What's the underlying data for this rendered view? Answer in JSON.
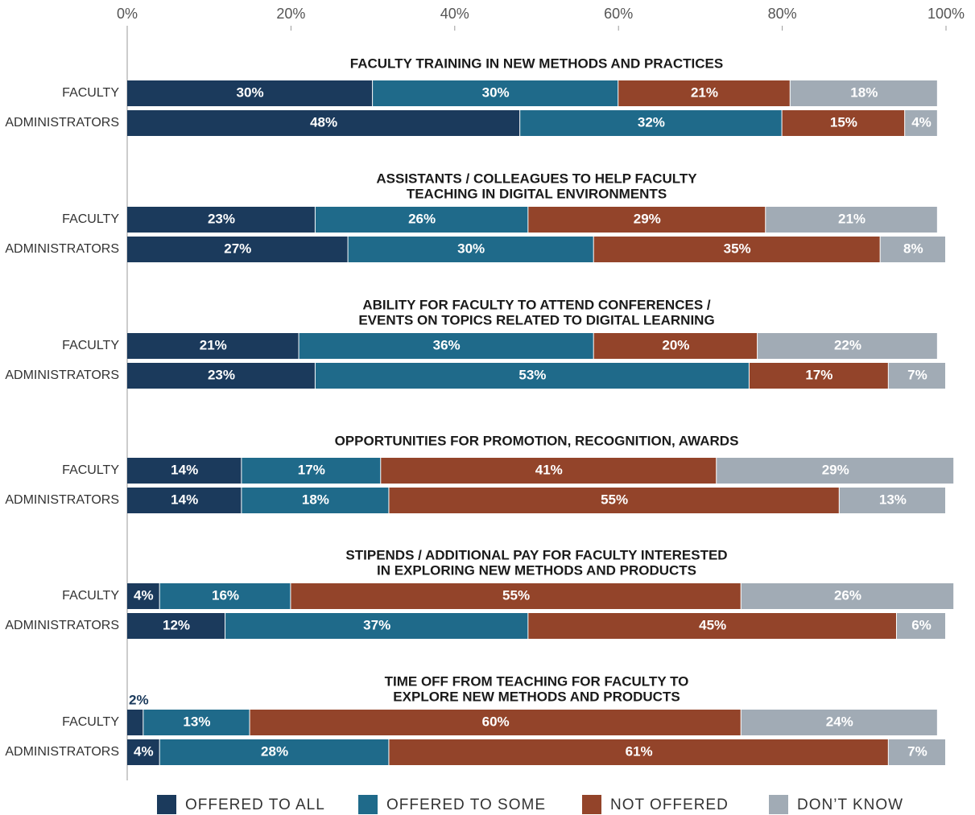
{
  "chart_data": {
    "type": "bar",
    "orientation": "horizontal",
    "stacked": true,
    "xlim": [
      0,
      100
    ],
    "xticks": [
      {
        "value": 0,
        "label": "0%"
      },
      {
        "value": 20,
        "label": "20%"
      },
      {
        "value": 40,
        "label": "40%"
      },
      {
        "value": 60,
        "label": "60%"
      },
      {
        "value": 80,
        "label": "80%"
      },
      {
        "value": 100,
        "label": "100%"
      }
    ],
    "group_titles": [
      [
        "FACULTY TRAINING IN NEW METHODS AND PRACTICES"
      ],
      [
        "ASSISTANTS / COLLEAGUES TO HELP FACULTY",
        "TEACHING IN DIGITAL ENVIRONMENTS"
      ],
      [
        "ABILITY FOR FACULTY TO ATTEND CONFERENCES /",
        "EVENTS ON TOPICS RELATED TO DIGITAL LEARNING"
      ],
      [
        "OPPORTUNITIES FOR PROMOTION, RECOGNITION, AWARDS"
      ],
      [
        "STIPENDS / ADDITIONAL PAY FOR FACULTY INTERESTED",
        "IN EXPLORING NEW METHODS AND PRODUCTS"
      ],
      [
        "TIME OFF FROM TEACHING FOR FACULTY TO",
        "EXPLORE NEW METHODS AND PRODUCTS"
      ]
    ],
    "categories": [
      "FACULTY",
      "ADMINISTRATORS",
      "FACULTY",
      "ADMINISTRATORS",
      "FACULTY",
      "ADMINISTRATORS",
      "FACULTY",
      "ADMINISTRATORS",
      "FACULTY",
      "ADMINISTRATORS",
      "FACULTY",
      "ADMINISTRATORS"
    ],
    "legend": "bottom",
    "series": [
      {
        "name": "OFFERED TO ALL",
        "color": "#1b3a5c",
        "values": [
          30,
          48,
          23,
          27,
          21,
          23,
          14,
          14,
          4,
          12,
          2,
          4
        ],
        "value_labels": [
          "30%",
          "48%",
          "23%",
          "27%",
          "21%",
          "23%",
          "14%",
          "14%",
          "4%",
          "12%",
          "2%",
          "4%"
        ]
      },
      {
        "name": "OFFERED TO SOME",
        "color": "#1f6a8a",
        "values": [
          30,
          32,
          26,
          30,
          36,
          53,
          17,
          18,
          16,
          37,
          13,
          28
        ],
        "value_labels": [
          "30%",
          "32%",
          "26%",
          "30%",
          "36%",
          "53%",
          "17%",
          "18%",
          "16%",
          "37%",
          "13%",
          "28%"
        ]
      },
      {
        "name": "NOT OFFERED",
        "color": "#93442a",
        "values": [
          21,
          15,
          29,
          35,
          20,
          17,
          41,
          55,
          55,
          45,
          60,
          61
        ],
        "value_labels": [
          "21%",
          "15%",
          "29%",
          "35%",
          "20%",
          "17%",
          "41%",
          "55%",
          "55%",
          "45%",
          "60%",
          "61%"
        ]
      },
      {
        "name": "DON’T KNOW",
        "color": "#a1abb5",
        "values": [
          18,
          4,
          21,
          8,
          22,
          7,
          29,
          13,
          26,
          6,
          24,
          7
        ],
        "value_labels": [
          "18%",
          "4%",
          "21%",
          "8%",
          "22%",
          "7%",
          "29%",
          "13%",
          "26%",
          "6%",
          "24%",
          "7%"
        ]
      }
    ]
  }
}
